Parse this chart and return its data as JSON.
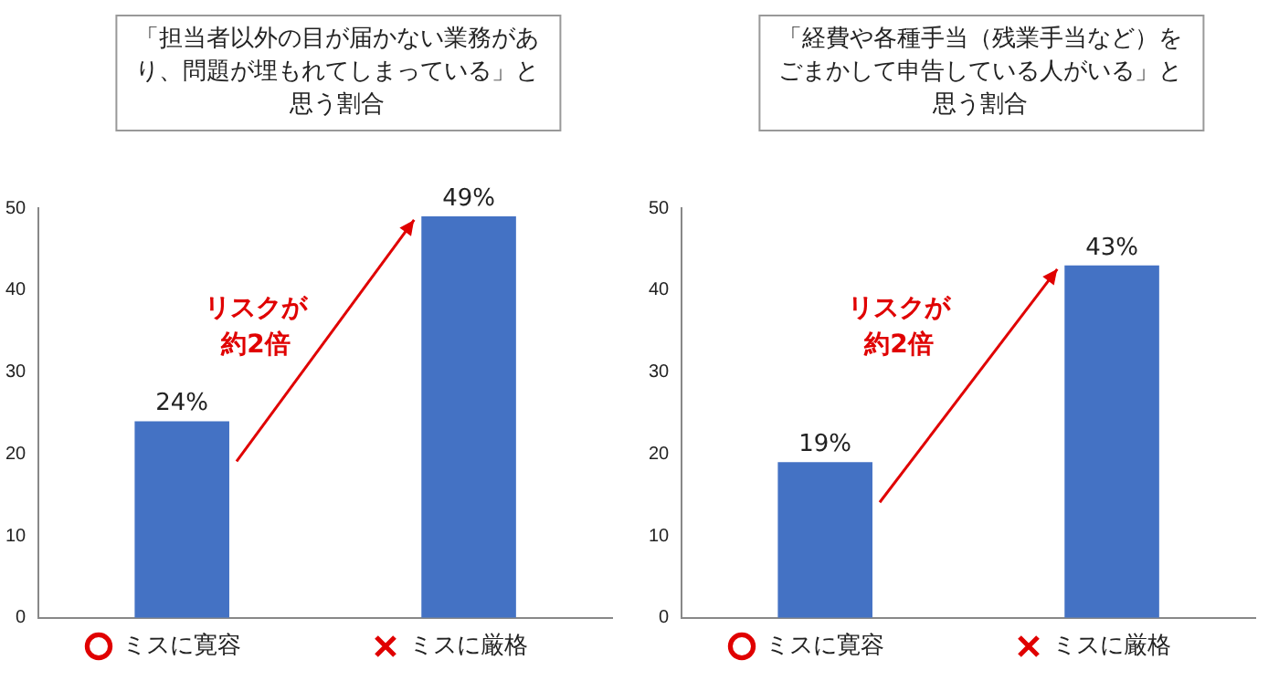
{
  "chart_data": [
    {
      "type": "bar",
      "title": "「担当者以外の目が届かない業務があり、問題が埋もれてしまっている」と思う割合",
      "categories": [
        "ミスに寛容",
        "ミスに厳格"
      ],
      "values": [
        24,
        49
      ],
      "value_labels": [
        "24%",
        "49%"
      ],
      "color": "#4472c4",
      "ylim": [
        0,
        50
      ],
      "yticks": [
        0,
        10,
        20,
        30,
        40,
        50
      ],
      "grid": false,
      "legend": false,
      "annotations": [
        "リスクが約2倍"
      ]
    },
    {
      "type": "bar",
      "title": "「経費や各種手当（残業手当など）をごまかして申告している人がいる」と思う割合",
      "categories": [
        "ミスに寛容",
        "ミスに厳格"
      ],
      "values": [
        19,
        43
      ],
      "value_labels": [
        "19%",
        "43%"
      ],
      "color": "#4472c4",
      "ylim": [
        0,
        50
      ],
      "yticks": [
        0,
        10,
        20,
        30,
        40,
        50
      ],
      "grid": false,
      "legend": false,
      "annotations": [
        "リスクが約2倍"
      ]
    }
  ]
}
